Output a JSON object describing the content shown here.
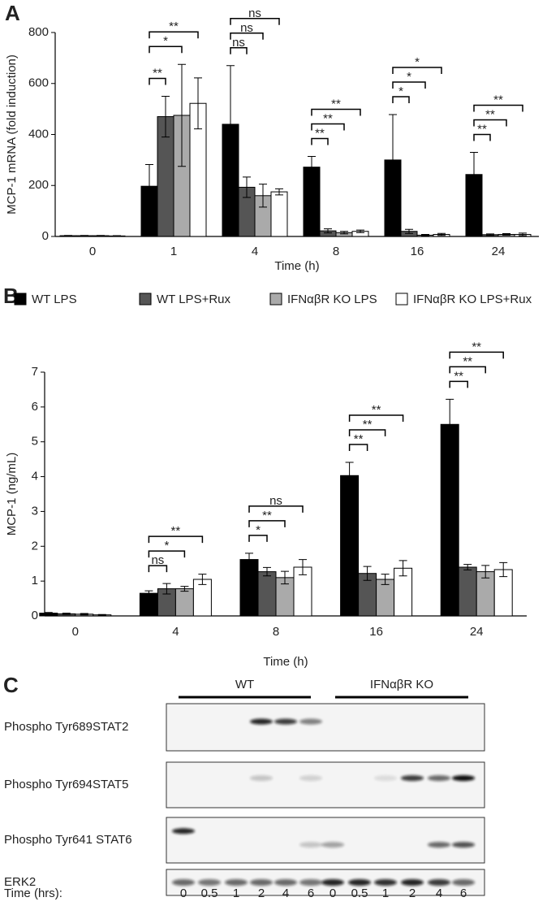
{
  "chart_data": [
    {
      "type": "bar",
      "panel": "A",
      "y_label": "MCP-1 mRNA (fold induction)",
      "x_label": "Time (h)",
      "categories": [
        "0",
        "1",
        "4",
        "8",
        "16",
        "24"
      ],
      "series": [
        {
          "color": "#000000",
          "values": [
            3,
            197,
            440,
            272,
            300,
            243
          ],
          "errors": [
            1,
            85,
            230,
            42,
            178,
            87
          ]
        },
        {
          "color": "#555555",
          "values": [
            3,
            470,
            193,
            22,
            20,
            7
          ],
          "errors": [
            1,
            80,
            40,
            8,
            8,
            3
          ]
        },
        {
          "color": "#aaaaaa",
          "values": [
            3,
            475,
            160,
            15,
            5,
            8
          ],
          "errors": [
            1,
            200,
            45,
            5,
            3,
            3
          ]
        },
        {
          "color": "#ffffff",
          "values": [
            2,
            522,
            175,
            20,
            8,
            8
          ],
          "errors": [
            1,
            100,
            12,
            5,
            4,
            5
          ]
        }
      ],
      "ylim": [
        0,
        800
      ],
      "yticks": [
        0,
        200,
        400,
        600,
        800
      ],
      "significance": [
        [],
        [
          {
            "label": "**",
            "from": 0,
            "to": 1
          },
          {
            "label": "*",
            "from": 0,
            "to": 2
          },
          {
            "label": "**",
            "from": 0,
            "to": 3
          }
        ],
        [
          {
            "label": "ns",
            "from": 0,
            "to": 1
          },
          {
            "label": "ns",
            "from": 0,
            "to": 2
          },
          {
            "label": "ns",
            "from": 0,
            "to": 3
          }
        ],
        [
          {
            "label": "**",
            "from": 0,
            "to": 1
          },
          {
            "label": "**",
            "from": 0,
            "to": 2
          },
          {
            "label": "**",
            "from": 0,
            "to": 3
          }
        ],
        [
          {
            "label": "*",
            "from": 0,
            "to": 1
          },
          {
            "label": "*",
            "from": 0,
            "to": 2
          },
          {
            "label": "*",
            "from": 0,
            "to": 3
          }
        ],
        [
          {
            "label": "**",
            "from": 0,
            "to": 1
          },
          {
            "label": "**",
            "from": 0,
            "to": 2
          },
          {
            "label": "**",
            "from": 0,
            "to": 3
          }
        ]
      ]
    },
    {
      "type": "bar",
      "panel": "B",
      "y_label": "MCP-1 (ng/mL)",
      "x_label": "Time (h)",
      "categories": [
        "0",
        "4",
        "8",
        "16",
        "24"
      ],
      "series": [
        {
          "name": "WT LPS",
          "color": "#000000",
          "values": [
            0.08,
            0.65,
            1.62,
            4.03,
            5.5
          ],
          "errors": [
            0.02,
            0.07,
            0.18,
            0.38,
            0.72
          ]
        },
        {
          "name": "WT LPS+Rux",
          "color": "#555555",
          "values": [
            0.06,
            0.78,
            1.27,
            1.22,
            1.4
          ],
          "errors": [
            0.02,
            0.15,
            0.12,
            0.2,
            0.08
          ]
        },
        {
          "name": "IFNαβR KO LPS",
          "color": "#aaaaaa",
          "values": [
            0.05,
            0.78,
            1.1,
            1.05,
            1.27
          ],
          "errors": [
            0.02,
            0.07,
            0.18,
            0.15,
            0.18
          ]
        },
        {
          "name": "IFNαβR KO LPS+Rux",
          "color": "#ffffff",
          "values": [
            0.03,
            1.05,
            1.4,
            1.37,
            1.33
          ],
          "errors": [
            0.01,
            0.15,
            0.22,
            0.22,
            0.2
          ]
        }
      ],
      "ylim": [
        0,
        7
      ],
      "yticks": [
        0,
        1,
        2,
        3,
        4,
        5,
        6,
        7
      ],
      "significance": [
        [],
        [
          {
            "label": "ns",
            "from": 0,
            "to": 1
          },
          {
            "label": "*",
            "from": 0,
            "to": 2
          },
          {
            "label": "**",
            "from": 0,
            "to": 3
          }
        ],
        [
          {
            "label": "*",
            "from": 0,
            "to": 1
          },
          {
            "label": "**",
            "from": 0,
            "to": 2
          },
          {
            "label": "ns",
            "from": 0,
            "to": 3
          }
        ],
        [
          {
            "label": "**",
            "from": 0,
            "to": 1
          },
          {
            "label": "**",
            "from": 0,
            "to": 2
          },
          {
            "label": "**",
            "from": 0,
            "to": 3
          }
        ],
        [
          {
            "label": "**",
            "from": 0,
            "to": 1
          },
          {
            "label": "**",
            "from": 0,
            "to": 2
          },
          {
            "label": "**",
            "from": 0,
            "to": 3
          }
        ]
      ]
    }
  ],
  "blot": {
    "panel": "C",
    "groups": [
      "WT",
      "IFNαβR KO"
    ],
    "rows": [
      "Phospho Tyr689STAT2",
      "Phospho Tyr694STAT5",
      "Phospho Tyr641 STAT6",
      "ERK2"
    ],
    "time_label": "Time (hrs):",
    "times": [
      "0",
      "0.5",
      "1",
      "2",
      "4",
      "6",
      "0",
      "0.5",
      "1",
      "2",
      "4",
      "6"
    ]
  }
}
